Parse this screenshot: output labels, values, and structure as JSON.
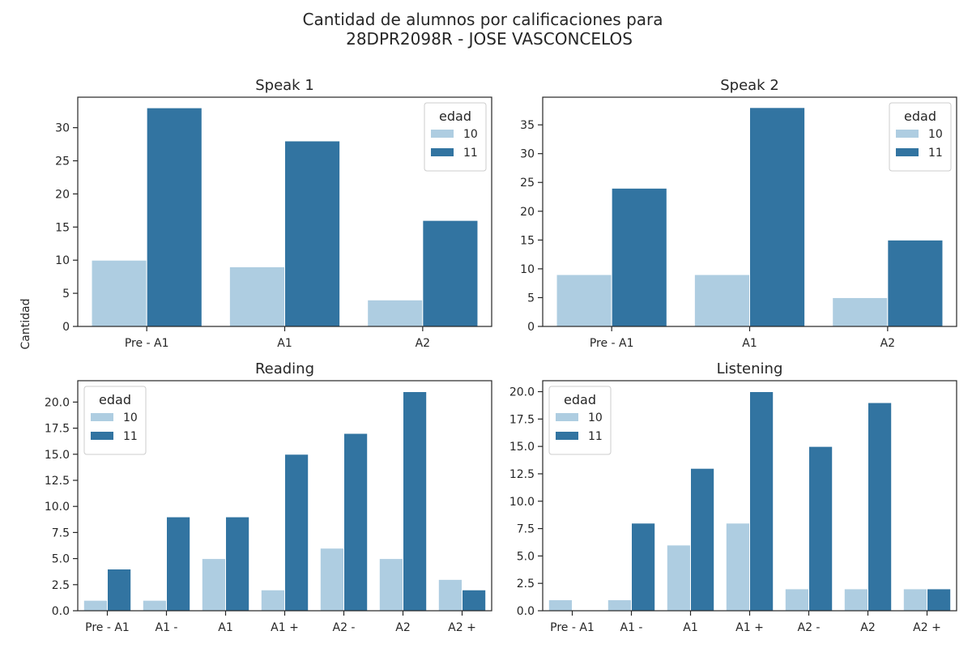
{
  "figure": {
    "title_lines": [
      "Cantidad de alumnos por calificaciones para",
      "28DPR2098R - JOSE VASCONCELOS"
    ],
    "ylabel": "Cantidad"
  },
  "colors": {
    "age_10": "#aecde1",
    "age_11": "#3274a1",
    "axis": "#262626"
  },
  "chart_data": [
    {
      "type": "bar",
      "title": "Speak 1",
      "categories": [
        "Pre - A1",
        "A1",
        "A2"
      ],
      "series": [
        {
          "name": "10",
          "values": [
            10,
            9,
            4
          ]
        },
        {
          "name": "11",
          "values": [
            33,
            28,
            16
          ]
        }
      ],
      "ylim": [
        0,
        34.6
      ],
      "yticks": [
        0,
        5,
        10,
        15,
        20,
        25,
        30
      ],
      "ytick_labels": [
        "0",
        "5",
        "10",
        "15",
        "20",
        "25",
        "30"
      ],
      "legend": {
        "title": "edad",
        "loc": "upper right"
      }
    },
    {
      "type": "bar",
      "title": "Speak 2",
      "categories": [
        "Pre - A1",
        "A1",
        "A2"
      ],
      "series": [
        {
          "name": "10",
          "values": [
            9,
            9,
            5
          ]
        },
        {
          "name": "11",
          "values": [
            24,
            38,
            15
          ]
        }
      ],
      "ylim": [
        0,
        39.8
      ],
      "yticks": [
        0,
        5,
        10,
        15,
        20,
        25,
        30,
        35
      ],
      "ytick_labels": [
        "0",
        "5",
        "10",
        "15",
        "20",
        "25",
        "30",
        "35"
      ],
      "legend": {
        "title": "edad",
        "loc": "upper right"
      }
    },
    {
      "type": "bar",
      "title": "Reading",
      "categories": [
        "Pre - A1",
        "A1 -",
        "A1",
        "A1 +",
        "A2 -",
        "A2",
        "A2 +"
      ],
      "series": [
        {
          "name": "10",
          "values": [
            1,
            1,
            5,
            2,
            6,
            5,
            3
          ]
        },
        {
          "name": "11",
          "values": [
            4,
            9,
            9,
            15,
            17,
            21,
            2
          ]
        }
      ],
      "ylim": [
        0,
        22.05
      ],
      "yticks": [
        0,
        2.5,
        5,
        7.5,
        10,
        12.5,
        15,
        17.5,
        20
      ],
      "ytick_labels": [
        "0.0",
        "2.5",
        "5.0",
        "7.5",
        "10.0",
        "12.5",
        "15.0",
        "17.5",
        "20.0"
      ],
      "legend": {
        "title": "edad",
        "loc": "upper left"
      }
    },
    {
      "type": "bar",
      "title": "Listening",
      "categories": [
        "Pre - A1",
        "A1 -",
        "A1",
        "A1 +",
        "A2 -",
        "A2",
        "A2 +"
      ],
      "series": [
        {
          "name": "10",
          "values": [
            1,
            1,
            6,
            8,
            2,
            2,
            2
          ]
        },
        {
          "name": "11",
          "values": [
            0,
            8,
            13,
            20,
            15,
            19,
            2
          ]
        }
      ],
      "ylim": [
        0,
        21
      ],
      "yticks": [
        0,
        2.5,
        5,
        7.5,
        10,
        12.5,
        15,
        17.5,
        20
      ],
      "ytick_labels": [
        "0.0",
        "2.5",
        "5.0",
        "7.5",
        "10.0",
        "12.5",
        "15.0",
        "17.5",
        "20.0"
      ],
      "legend": {
        "title": "edad",
        "loc": "upper left"
      }
    }
  ]
}
